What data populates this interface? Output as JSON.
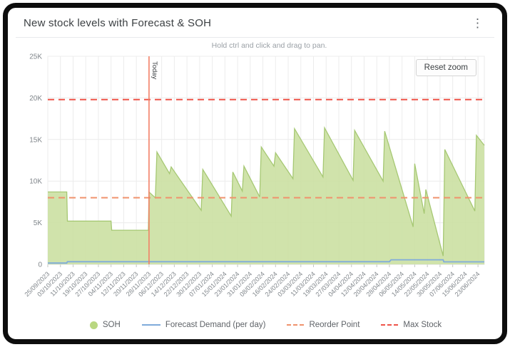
{
  "card": {
    "title": "New stock levels with Forecast & SOH",
    "menu_icon": "⋮"
  },
  "hint": "Hold ctrl and click and drag to pan.",
  "controls": {
    "reset_zoom": "Reset zoom"
  },
  "chart_data": {
    "type": "area",
    "title": "New stock levels with Forecast & SOH",
    "ylim": [
      0,
      25000
    ],
    "y_ticks": [
      {
        "label": "0",
        "value": 0
      },
      {
        "label": "5K",
        "value": 5000
      },
      {
        "label": "10K",
        "value": 10000
      },
      {
        "label": "15K",
        "value": 15000
      },
      {
        "label": "20K",
        "value": 20000
      },
      {
        "label": "25K",
        "value": 25000
      }
    ],
    "x_start_date": "25/09/2023",
    "x_tick_interval_days": 8,
    "x_total_days": 276,
    "x_tick_labels": [
      "25/09/2023",
      "03/10/2023",
      "11/10/2023",
      "19/10/2023",
      "27/10/2023",
      "04/11/2023",
      "12/11/2023",
      "20/11/2023",
      "28/11/2023",
      "06/12/2023",
      "14/12/2023",
      "22/12/2023",
      "30/12/2023",
      "07/01/2024",
      "15/01/2024",
      "23/01/2024",
      "31/01/2024",
      "08/02/2024",
      "16/02/2024",
      "24/02/2024",
      "03/03/2024",
      "11/03/2024",
      "19/03/2024",
      "27/03/2024",
      "04/04/2024",
      "12/04/2024",
      "20/04/2024",
      "28/04/2024",
      "06/05/2024",
      "14/05/2024",
      "22/05/2024",
      "30/05/2024",
      "07/06/2024",
      "15/06/2024",
      "23/06/2024"
    ],
    "today": {
      "label": "Today",
      "date": "28/11/2023",
      "day_index": 64,
      "color": "#f28066"
    },
    "grid": {
      "on": true,
      "h_color": "#ececec",
      "v_color": "#ececec"
    },
    "series": [
      {
        "name": "SOH",
        "type": "area",
        "color": "#cbe0a2",
        "stroke": "#a6c873",
        "points": [
          [
            0,
            8700
          ],
          [
            12,
            8700
          ],
          [
            12.4,
            5200
          ],
          [
            40,
            5200
          ],
          [
            40.4,
            4100
          ],
          [
            63.6,
            4100
          ],
          [
            64,
            8700
          ],
          [
            68,
            8000
          ],
          [
            69,
            13500
          ],
          [
            77,
            10900
          ],
          [
            78,
            11700
          ],
          [
            97,
            6500
          ],
          [
            98,
            11400
          ],
          [
            116,
            5800
          ],
          [
            117,
            11100
          ],
          [
            123,
            8800
          ],
          [
            124,
            11800
          ],
          [
            134,
            8100
          ],
          [
            135,
            14100
          ],
          [
            143,
            11800
          ],
          [
            144,
            13400
          ],
          [
            155,
            10300
          ],
          [
            156,
            16300
          ],
          [
            174,
            10500
          ],
          [
            175,
            16400
          ],
          [
            193,
            10100
          ],
          [
            194,
            16100
          ],
          [
            212,
            10000
          ],
          [
            213,
            16000
          ],
          [
            231,
            4500
          ],
          [
            232,
            12100
          ],
          [
            238,
            6100
          ],
          [
            239,
            9000
          ],
          [
            250,
            1000
          ],
          [
            251,
            13800
          ],
          [
            270,
            6400
          ],
          [
            271,
            15500
          ],
          [
            276,
            14300
          ]
        ]
      },
      {
        "name": "Forecast Demand (per day)",
        "type": "line",
        "color": "#7fabdb",
        "points": [
          [
            0,
            150
          ],
          [
            12,
            150
          ],
          [
            12.4,
            320
          ],
          [
            216,
            320
          ],
          [
            217,
            550
          ],
          [
            250,
            550
          ],
          [
            250.4,
            300
          ],
          [
            276,
            300
          ]
        ]
      },
      {
        "name": "Reorder Point",
        "type": "hline-dashed",
        "color": "#f0926c",
        "value": 8000
      },
      {
        "name": "Max Stock",
        "type": "hline-dashed",
        "color": "#ee5449",
        "value": 19800
      }
    ],
    "legend": [
      {
        "label": "SOH",
        "swatch": "circle",
        "color": "#b9d781"
      },
      {
        "label": "Forecast Demand (per day)",
        "swatch": "line",
        "color": "#7fabdb"
      },
      {
        "label": "Reorder Point",
        "swatch": "dash",
        "color": "#f0926c"
      },
      {
        "label": "Max Stock",
        "swatch": "dash",
        "color": "#ee5449"
      }
    ],
    "legend_position": "bottom"
  }
}
